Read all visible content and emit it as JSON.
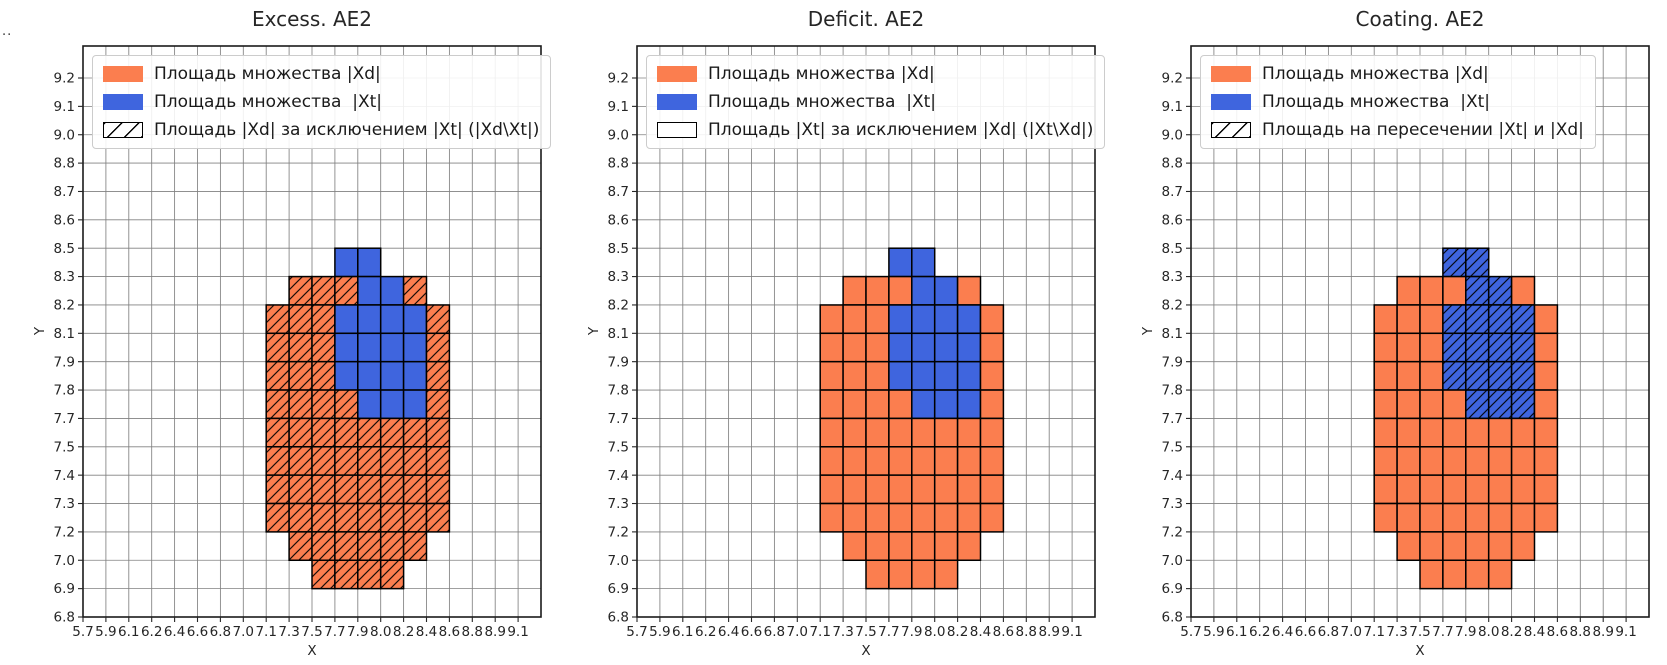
{
  "figure": {
    "dots_note": "..",
    "colors": {
      "xd_orange": "#FB7E4F",
      "xt_blue": "#3F65DE",
      "grid_line": "#818181",
      "cell_edge": "#000000",
      "frame": "#1a1a1a",
      "tick_text": "#262626",
      "title_text": "#262626",
      "legend_border": "#cccccc"
    },
    "legend": {
      "xd_label": "Площадь множества |Xd|",
      "xt_label": "Площадь множества  |Xt|"
    },
    "panels": [
      {
        "id": "excess",
        "title": "Excess. AE2",
        "legend_third": "Площадь |Xd| за исключением |Xt| (|Xd\\Xt|)",
        "third_swatch": "hatched",
        "hatch_on": "orange"
      },
      {
        "id": "deficit",
        "title": "Deficit. AE2",
        "legend_third": "Площадь |Xt| за исключением |Xd| (|Xt\\Xd|)",
        "third_swatch": "plain",
        "hatch_on": "none"
      },
      {
        "id": "coating",
        "title": "Coating. AE2",
        "legend_third": "Площадь на пересечении |Xt| и |Xd|",
        "third_swatch": "hatched",
        "hatch_on": "blue"
      }
    ],
    "chart_data": {
      "type": "heatmap",
      "x_axis_label": "X",
      "y_axis_label": "Y",
      "grid": true,
      "legend_position": "upper left",
      "x_tick_labels": [
        "5.7",
        "5.9",
        "6.1",
        "6.2",
        "6.4",
        "6.6",
        "6.8",
        "7.0",
        "7.1",
        "7.3",
        "7.5",
        "7.7",
        "7.9",
        "8.0",
        "8.2",
        "8.4",
        "8.6",
        "8.8",
        "8.9",
        "9.1"
      ],
      "y_tick_labels": [
        "9.2",
        "9.1",
        "9.0",
        "8.8",
        "8.7",
        "8.6",
        "8.5",
        "8.3",
        "8.2",
        "8.1",
        "7.9",
        "7.8",
        "7.7",
        "7.5",
        "7.4",
        "7.3",
        "7.2",
        "7.0",
        "6.9",
        "6.8"
      ],
      "sets": {
        "orange": "Xd (detected set)",
        "blue": "Xt (true set)"
      },
      "rows": [
        {
          "row": 6,
          "y_range": [
            8.5,
            8.3
          ],
          "segments": [
            {
              "set": "blue",
              "col_start": 11,
              "col_end": 12,
              "x_range": [
                7.7,
                8.0
              ]
            }
          ]
        },
        {
          "row": 7,
          "y_range": [
            8.3,
            8.2
          ],
          "segments": [
            {
              "set": "orange",
              "col_start": 9,
              "col_end": 11,
              "x_range": [
                7.3,
                7.9
              ]
            },
            {
              "set": "blue",
              "col_start": 12,
              "col_end": 13,
              "x_range": [
                7.9,
                8.2
              ]
            },
            {
              "set": "orange",
              "col_start": 14,
              "col_end": 14,
              "x_range": [
                8.2,
                8.4
              ]
            }
          ]
        },
        {
          "row": 8,
          "y_range": [
            8.2,
            8.1
          ],
          "segments": [
            {
              "set": "orange",
              "col_start": 8,
              "col_end": 10,
              "x_range": [
                7.1,
                7.7
              ]
            },
            {
              "set": "blue",
              "col_start": 11,
              "col_end": 14,
              "x_range": [
                7.7,
                8.4
              ]
            },
            {
              "set": "orange",
              "col_start": 15,
              "col_end": 15,
              "x_range": [
                8.4,
                8.6
              ]
            }
          ]
        },
        {
          "row": 9,
          "y_range": [
            8.1,
            7.9
          ],
          "segments": [
            {
              "set": "orange",
              "col_start": 8,
              "col_end": 10,
              "x_range": [
                7.1,
                7.7
              ]
            },
            {
              "set": "blue",
              "col_start": 11,
              "col_end": 14,
              "x_range": [
                7.7,
                8.4
              ]
            },
            {
              "set": "orange",
              "col_start": 15,
              "col_end": 15,
              "x_range": [
                8.4,
                8.6
              ]
            }
          ]
        },
        {
          "row": 10,
          "y_range": [
            7.9,
            7.8
          ],
          "segments": [
            {
              "set": "orange",
              "col_start": 8,
              "col_end": 10,
              "x_range": [
                7.1,
                7.7
              ]
            },
            {
              "set": "blue",
              "col_start": 11,
              "col_end": 14,
              "x_range": [
                7.7,
                8.4
              ]
            },
            {
              "set": "orange",
              "col_start": 15,
              "col_end": 15,
              "x_range": [
                8.4,
                8.6
              ]
            }
          ]
        },
        {
          "row": 11,
          "y_range": [
            7.8,
            7.7
          ],
          "segments": [
            {
              "set": "orange",
              "col_start": 8,
              "col_end": 11,
              "x_range": [
                7.1,
                7.9
              ]
            },
            {
              "set": "blue",
              "col_start": 12,
              "col_end": 14,
              "x_range": [
                7.9,
                8.4
              ]
            },
            {
              "set": "orange",
              "col_start": 15,
              "col_end": 15,
              "x_range": [
                8.4,
                8.6
              ]
            }
          ]
        },
        {
          "row": 12,
          "y_range": [
            7.7,
            7.5
          ],
          "segments": [
            {
              "set": "orange",
              "col_start": 8,
              "col_end": 15,
              "x_range": [
                7.1,
                8.6
              ]
            }
          ]
        },
        {
          "row": 13,
          "y_range": [
            7.5,
            7.4
          ],
          "segments": [
            {
              "set": "orange",
              "col_start": 8,
              "col_end": 15,
              "x_range": [
                7.1,
                8.6
              ]
            }
          ]
        },
        {
          "row": 14,
          "y_range": [
            7.4,
            7.3
          ],
          "segments": [
            {
              "set": "orange",
              "col_start": 8,
              "col_end": 15,
              "x_range": [
                7.1,
                8.6
              ]
            }
          ]
        },
        {
          "row": 15,
          "y_range": [
            7.3,
            7.2
          ],
          "segments": [
            {
              "set": "orange",
              "col_start": 8,
              "col_end": 15,
              "x_range": [
                7.1,
                8.6
              ]
            }
          ]
        },
        {
          "row": 16,
          "y_range": [
            7.2,
            7.0
          ],
          "segments": [
            {
              "set": "orange",
              "col_start": 9,
              "col_end": 14,
              "x_range": [
                7.3,
                8.4
              ]
            }
          ]
        },
        {
          "row": 17,
          "y_range": [
            7.0,
            6.9
          ],
          "segments": [
            {
              "set": "orange",
              "col_start": 10,
              "col_end": 13,
              "x_range": [
                7.5,
                8.2
              ]
            }
          ]
        }
      ],
      "panel_hatching": [
        {
          "panel": "Excess. AE2",
          "hatched_region": "Xd minus Xt (orange cells)"
        },
        {
          "panel": "Deficit. AE2",
          "hatched_region": "none (Xt\\Xd is empty)"
        },
        {
          "panel": "Coating. AE2",
          "hatched_region": "intersection of Xt and Xd (blue cells)"
        }
      ]
    }
  }
}
